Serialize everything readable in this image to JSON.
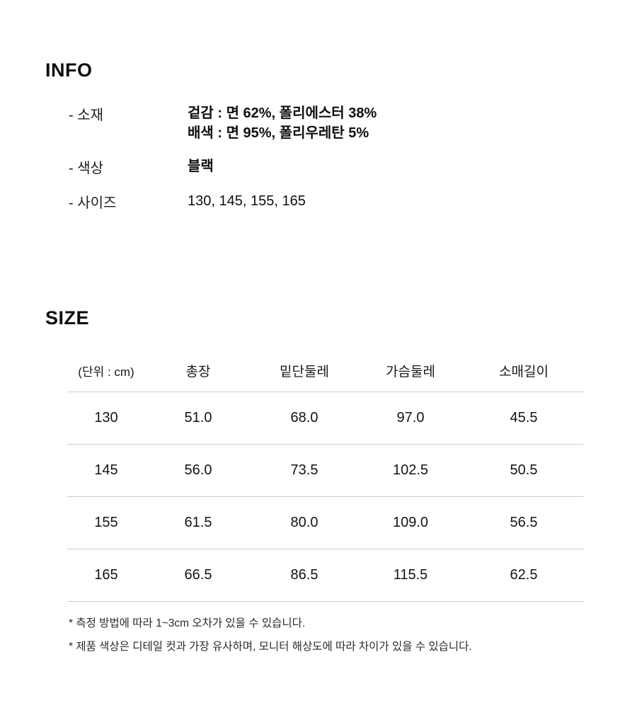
{
  "info": {
    "heading": "INFO",
    "rows": [
      {
        "label": "- 소재",
        "value_lines": [
          "겉감 : 면 62%, 폴리에스터 38%",
          "배색 : 면 95%, 폴리우레탄 5%"
        ]
      },
      {
        "label": "- 색상",
        "value_lines": [
          "블랙"
        ]
      },
      {
        "label": "- 사이즈",
        "value_lines": [
          "130, 145, 155, 165"
        ]
      }
    ]
  },
  "size": {
    "heading": "SIZE",
    "table": {
      "headers": [
        "(단위 : cm)",
        "총장",
        "밑단둘레",
        "가슴둘레",
        "소매길이"
      ],
      "rows": [
        [
          "130",
          "51.0",
          "68.0",
          "97.0",
          "45.5"
        ],
        [
          "145",
          "56.0",
          "73.5",
          "102.5",
          "50.5"
        ],
        [
          "155",
          "61.5",
          "80.0",
          "109.0",
          "56.5"
        ],
        [
          "165",
          "66.5",
          "86.5",
          "115.5",
          "62.5"
        ]
      ]
    },
    "footnotes": [
      "* 측정 방법에 따라 1~3cm 오차가 있을 수 있습니다.",
      "* 제품 색상은 디테일 컷과 가장 유사하며, 모니터 해상도에 따라 차이가 있을 수 있습니다."
    ]
  },
  "colors": {
    "text": "#151515",
    "table_line": "#cccccc",
    "background": "#ffffff"
  }
}
